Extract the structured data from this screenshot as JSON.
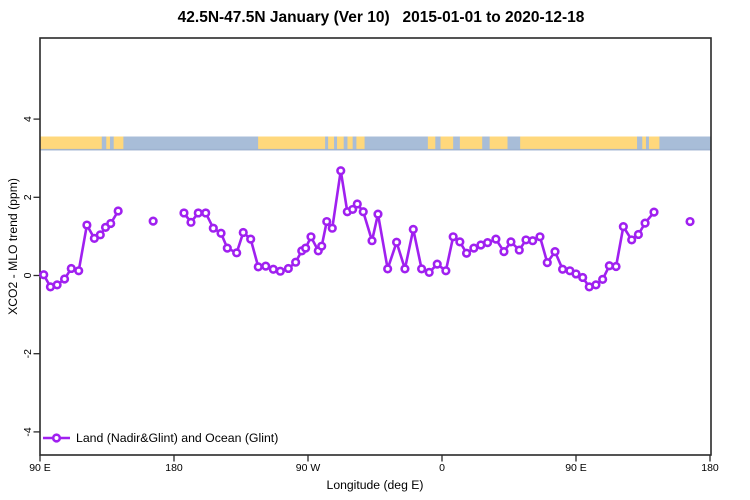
{
  "colors": {
    "series": "#A020F0",
    "land": "#FFD87C",
    "ocean": "#A8BDD8",
    "strip_baseline": "#9DB1CF",
    "frame": "#2A2A2A"
  },
  "legend": {
    "label": "Land (Nadir&Glint) and Ocean (Glint)"
  },
  "map_strip": {
    "description": "coastline strip drawn near +3.45 ppm; land=tan, ocean=blue",
    "segments": [
      {
        "from": 90,
        "to": 131.5,
        "surface": "land"
      },
      {
        "from": 131.5,
        "to": 134.5,
        "surface": "ocean"
      },
      {
        "from": 134.5,
        "to": 137,
        "surface": "land"
      },
      {
        "from": 137,
        "to": 139.5,
        "surface": "ocean"
      },
      {
        "from": 139.5,
        "to": 146,
        "surface": "land"
      },
      {
        "from": 146,
        "to": 236.5,
        "surface": "ocean"
      },
      {
        "from": 236.5,
        "to": 281.5,
        "surface": "land"
      },
      {
        "from": 281.5,
        "to": 283.5,
        "surface": "ocean"
      },
      {
        "from": 283.5,
        "to": 287.5,
        "surface": "land"
      },
      {
        "from": 287.5,
        "to": 289.5,
        "sursurface": "ocean",
        "surface": "ocean"
      },
      {
        "from": 289.5,
        "to": 294,
        "surface": "land"
      },
      {
        "from": 294,
        "to": 296.5,
        "surface": "ocean"
      },
      {
        "from": 296.5,
        "to": 300,
        "surface": "land"
      },
      {
        "from": 300,
        "to": 302.5,
        "surface": "ocean"
      },
      {
        "from": 302.5,
        "to": 308,
        "surface": "land"
      },
      {
        "from": 308,
        "to": 350.5,
        "surface": "ocean"
      },
      {
        "from": 350.5,
        "to": 355.5,
        "surface": "land"
      },
      {
        "from": 355.5,
        "to": 359,
        "surface": "ocean"
      },
      {
        "from": 359,
        "to": 367.5,
        "surface": "land"
      },
      {
        "from": 367.5,
        "to": 372,
        "surface": "ocean"
      },
      {
        "from": 372,
        "to": 387,
        "surface": "land"
      },
      {
        "from": 387,
        "to": 392,
        "surface": "ocean"
      },
      {
        "from": 392,
        "to": 404,
        "surface": "land"
      },
      {
        "from": 404,
        "to": 412.5,
        "surface": "ocean"
      },
      {
        "from": 412.5,
        "to": 491,
        "surface": "land"
      },
      {
        "from": 491,
        "to": 494.5,
        "surface": "ocean"
      },
      {
        "from": 494.5,
        "to": 497,
        "surface": "land"
      },
      {
        "from": 497,
        "to": 499,
        "surface": "ocean"
      },
      {
        "from": 499,
        "to": 506,
        "surface": "land"
      },
      {
        "from": 506,
        "to": 540,
        "surface": "ocean"
      }
    ]
  },
  "chart_data": {
    "type": "line",
    "title": "42.5N-47.5N January (Ver 10)   2015-01-01 to 2020-12-18",
    "xlabel": "Longitude (deg E)",
    "ylabel": "XCO2 - MLO trend (ppm)",
    "xlim": [
      90,
      540
    ],
    "ylim": [
      -4.6,
      6.1
    ],
    "grid": false,
    "legend_position": "bottom-left",
    "x_axis_note": "longitude wraps eastward: 90E → 180 → 90W → 0 → 90E → 180",
    "x_ticks": [
      {
        "lon": 90,
        "label": "90 E"
      },
      {
        "lon": 180,
        "label": "180"
      },
      {
        "lon": 270,
        "label": "90 W"
      },
      {
        "lon": 360,
        "label": "0"
      },
      {
        "lon": 450,
        "label": "90 E"
      },
      {
        "lon": 540,
        "label": "180"
      }
    ],
    "y_ticks": [
      {
        "v": 4,
        "label": "4"
      },
      {
        "v": 2,
        "label": "2"
      },
      {
        "v": 0,
        "label": "0"
      },
      {
        "v": -2,
        "label": "-2"
      },
      {
        "v": -4,
        "label": "-4"
      }
    ],
    "series": [
      {
        "name": "Land (Nadir&Glint) and Ocean (Glint)",
        "color": "#A020F0",
        "marker": "open-circle",
        "segments": [
          [
            [
              92.5,
              0.02
            ],
            [
              97,
              -0.29
            ],
            [
              101.5,
              -0.24
            ],
            [
              106.5,
              -0.09
            ],
            [
              111,
              0.18
            ],
            [
              116,
              0.12
            ],
            [
              121.5,
              1.29
            ],
            [
              126.5,
              0.95
            ],
            [
              130.5,
              1.04
            ],
            [
              134,
              1.23
            ],
            [
              137.5,
              1.33
            ],
            [
              142.5,
              1.65
            ]
          ],
          [
            [
              166,
              1.39
            ]
          ],
          [
            [
              186.7,
              1.6
            ],
            [
              191.4,
              1.36
            ],
            [
              196.3,
              1.6
            ],
            [
              201.3,
              1.6
            ],
            [
              206.4,
              1.21
            ],
            [
              211.6,
              1.08
            ],
            [
              215.8,
              0.7
            ],
            [
              222.1,
              0.58
            ],
            [
              226.5,
              1.1
            ],
            [
              231.5,
              0.93
            ],
            [
              236.6,
              0.22
            ],
            [
              241.6,
              0.24
            ],
            [
              246.7,
              0.16
            ],
            [
              251.4,
              0.11
            ],
            [
              256.8,
              0.18
            ],
            [
              261.7,
              0.34
            ],
            [
              265.8,
              0.63
            ],
            [
              268.4,
              0.7
            ],
            [
              272,
              0.99
            ],
            [
              276.9,
              0.63
            ],
            [
              279.2,
              0.75
            ],
            [
              282.6,
              1.38
            ],
            [
              286.3,
              1.21
            ],
            [
              292,
              2.68
            ],
            [
              296.4,
              1.63
            ],
            [
              300,
              1.69
            ],
            [
              303.1,
              1.83
            ],
            [
              307.1,
              1.63
            ],
            [
              313,
              0.89
            ],
            [
              317,
              1.57
            ],
            [
              323.5,
              0.17
            ],
            [
              329.5,
              0.85
            ],
            [
              335.1,
              0.17
            ],
            [
              340.7,
              1.18
            ],
            [
              346.3,
              0.17
            ],
            [
              351.4,
              0.08
            ],
            [
              356.8,
              0.29
            ],
            [
              362.6,
              0.12
            ],
            [
              367.5,
              0.99
            ],
            [
              372,
              0.86
            ],
            [
              376.5,
              0.57
            ],
            [
              381.4,
              0.7
            ],
            [
              386.1,
              0.78
            ],
            [
              390.6,
              0.84
            ],
            [
              396.2,
              0.93
            ],
            [
              401.6,
              0.61
            ],
            [
              406.3,
              0.86
            ],
            [
              411.9,
              0.65
            ],
            [
              416.4,
              0.91
            ],
            [
              420.9,
              0.89
            ],
            [
              425.8,
              0.99
            ],
            [
              430.7,
              0.33
            ],
            [
              435.9,
              0.61
            ],
            [
              441,
              0.16
            ],
            [
              445.9,
              0.12
            ],
            [
              450,
              0.04
            ],
            [
              454.5,
              -0.05
            ],
            [
              458.9,
              -0.29
            ],
            [
              463.4,
              -0.24
            ],
            [
              467.9,
              -0.1
            ],
            [
              472.4,
              0.25
            ],
            [
              476.9,
              0.23
            ],
            [
              481.8,
              1.25
            ],
            [
              487.4,
              0.91
            ],
            [
              491.9,
              1.05
            ],
            [
              496.4,
              1.34
            ],
            [
              502.4,
              1.62
            ]
          ],
          [
            [
              526.6,
              1.38
            ]
          ]
        ]
      }
    ]
  }
}
